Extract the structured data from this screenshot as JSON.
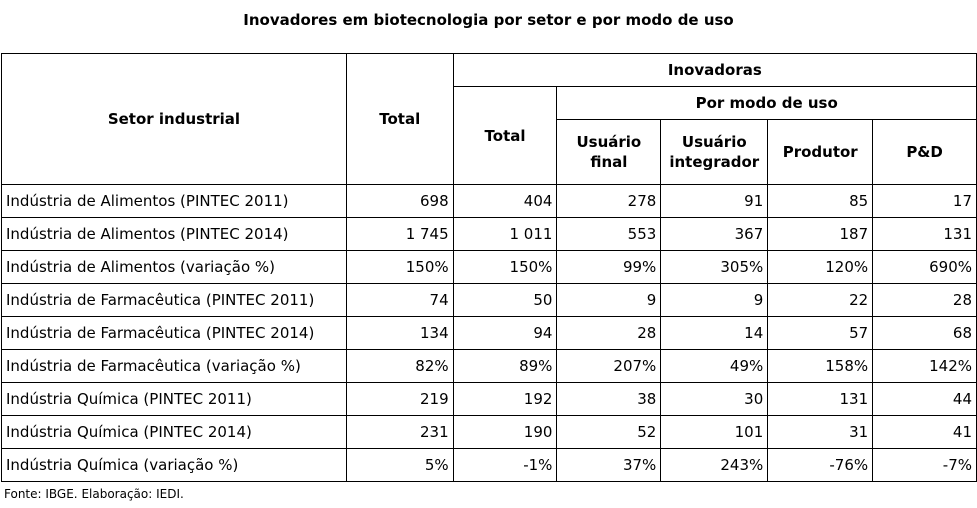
{
  "title": "Inovadores em biotecnologia por setor e por modo de uso",
  "table": {
    "headers": {
      "sector": "Setor industrial",
      "total": "Total",
      "innovators_group": "Inovadoras",
      "innovators_total": "Total",
      "by_use_mode": "Por modo de uso",
      "end_user": "Usuário final",
      "integrator_user": "Usuário integrador",
      "producer": "Produtor",
      "rnd": "P&D"
    },
    "rows": [
      [
        "Indústria de Alimentos (PINTEC 2011)",
        "698",
        "404",
        "278",
        "91",
        "85",
        "17"
      ],
      [
        "Indústria de Alimentos (PINTEC 2014)",
        "1 745",
        "1 011",
        "553",
        "367",
        "187",
        "131"
      ],
      [
        "Indústria de Alimentos (variação %)",
        "150%",
        "150%",
        "99%",
        "305%",
        "120%",
        "690%"
      ],
      [
        "Indústria de Farmacêutica (PINTEC 2011)",
        "74",
        "50",
        "9",
        "9",
        "22",
        "28"
      ],
      [
        "Indústria de Farmacêutica (PINTEC 2014)",
        "134",
        "94",
        "28",
        "14",
        "57",
        "68"
      ],
      [
        "Indústria de Farmacêutica (variação %)",
        "82%",
        "89%",
        "207%",
        "49%",
        "158%",
        "142%"
      ],
      [
        "Indústria Química (PINTEC 2011)",
        "219",
        "192",
        "38",
        "30",
        "131",
        "44"
      ],
      [
        "Indústria Química (PINTEC 2014)",
        "231",
        "190",
        "52",
        "101",
        "31",
        "41"
      ],
      [
        "Indústria Química (variação %)",
        "5%",
        "-1%",
        "37%",
        "243%",
        "-76%",
        "-7%"
      ]
    ]
  },
  "source": "Fonte: IBGE. Elaboração: IEDI."
}
